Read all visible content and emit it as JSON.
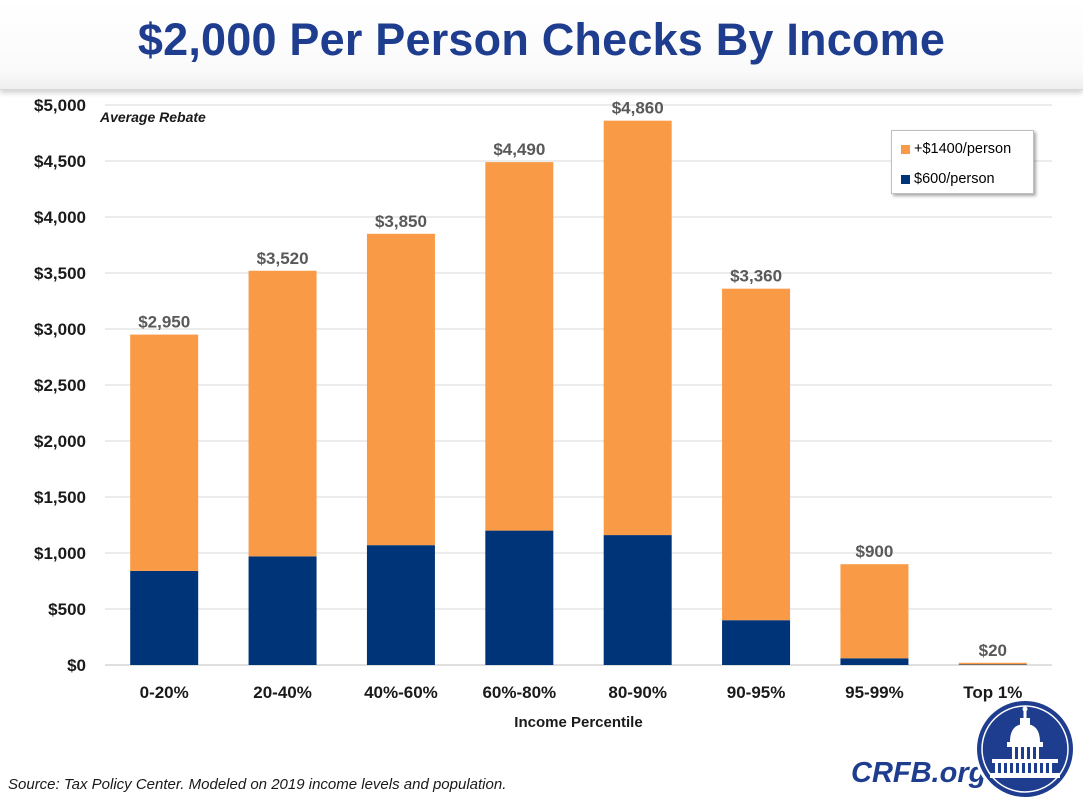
{
  "title": "$2,000 Per Person Checks By Income",
  "chart_data": {
    "type": "bar",
    "stacked": true,
    "title": "$2,000 Per Person Checks By Income",
    "subtitle": "Average Rebate",
    "xlabel": "Income Percentile",
    "ylabel": "",
    "ylim": [
      0,
      5000
    ],
    "yticks": [
      0,
      500,
      1000,
      1500,
      2000,
      2500,
      3000,
      3500,
      4000,
      4500,
      5000
    ],
    "ytick_labels": [
      "$0",
      "$500",
      "$1,000",
      "$1,500",
      "$2,000",
      "$2,500",
      "$3,000",
      "$3,500",
      "$4,000",
      "$4,500",
      "$5,000"
    ],
    "categories": [
      "0-20%",
      "20-40%",
      "40%-60%",
      "60%-80%",
      "80-90%",
      "90-95%",
      "95-99%",
      "Top 1%"
    ],
    "series": [
      {
        "name": "$600/person",
        "color": "#003478",
        "values": [
          840,
          970,
          1070,
          1200,
          1160,
          400,
          60,
          5
        ]
      },
      {
        "name": "+$1400/person",
        "color": "#f99b46",
        "values": [
          2110,
          2550,
          2780,
          3290,
          3700,
          2960,
          840,
          15
        ]
      }
    ],
    "totals": [
      2950,
      3520,
      3850,
      4490,
      4860,
      3360,
      900,
      20
    ],
    "total_labels": [
      "$2,950",
      "$3,520",
      "$3,850",
      "$4,490",
      "$4,860",
      "$3,360",
      "$900",
      "$20"
    ],
    "legend_position": "top-right",
    "grid": true
  },
  "legend": {
    "items": [
      {
        "label": "+$1400/person",
        "color": "#f99b46"
      },
      {
        "label": "$600/person",
        "color": "#003478"
      }
    ]
  },
  "footer": {
    "source": "Source: Tax Policy Center. Modeled on 2019 income levels and population.",
    "brand": "CRFB.org"
  }
}
